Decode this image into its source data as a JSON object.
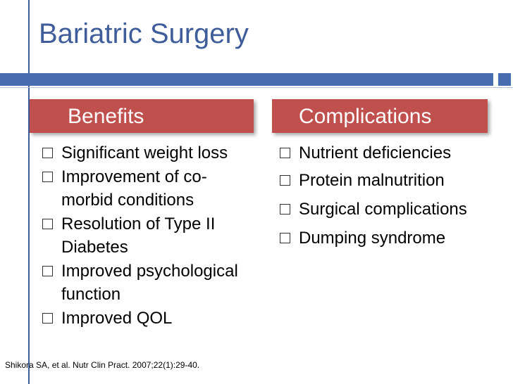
{
  "slide": {
    "title": "Bariatric Surgery",
    "accent_color": "#c0504d",
    "theme_color": "#4a6db1"
  },
  "benefits": {
    "header": "Benefits",
    "items": [
      "Significant weight loss",
      "Improvement of co-morbid conditions",
      "Resolution of Type II Diabetes",
      "Improved psychological function",
      "Improved QOL"
    ]
  },
  "complications": {
    "header": "Complications",
    "items": [
      "Nutrient deficiencies",
      "Protein malnutrition",
      "Surgical complications",
      "Dumping syndrome"
    ]
  },
  "citation": "Shikora SA, et al. Nutr Clin Pract. 2007;22(1):29-40."
}
